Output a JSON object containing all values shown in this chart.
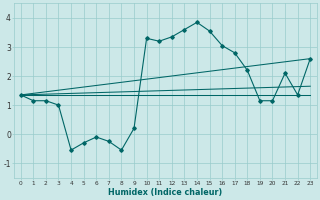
{
  "x_main": [
    0,
    1,
    2,
    3,
    4,
    5,
    6,
    7,
    8,
    9,
    10,
    11,
    12,
    13,
    14,
    15,
    16,
    17,
    18,
    19,
    20,
    21,
    22,
    23
  ],
  "y_main": [
    1.35,
    1.15,
    1.15,
    1.0,
    -0.55,
    -0.3,
    -0.1,
    -0.25,
    -0.55,
    0.2,
    3.3,
    3.2,
    3.35,
    3.6,
    3.85,
    3.55,
    3.05,
    2.8,
    2.2,
    1.15,
    1.15,
    2.1,
    1.35,
    2.6
  ],
  "flat_line_y": 1.35,
  "rising_line1": [
    1.35,
    2.6
  ],
  "rising_line2": [
    1.35,
    1.65
  ],
  "bg_color": "#cce8e8",
  "grid_color": "#99cccc",
  "line_color": "#006666",
  "xlabel": "Humidex (Indice chaleur)",
  "ylim": [
    -1.5,
    4.5
  ],
  "xlim": [
    -0.5,
    23.5
  ],
  "yticks": [
    -1,
    0,
    1,
    2,
    3,
    4
  ],
  "xticks": [
    0,
    1,
    2,
    3,
    4,
    5,
    6,
    7,
    8,
    9,
    10,
    11,
    12,
    13,
    14,
    15,
    16,
    17,
    18,
    19,
    20,
    21,
    22,
    23
  ]
}
